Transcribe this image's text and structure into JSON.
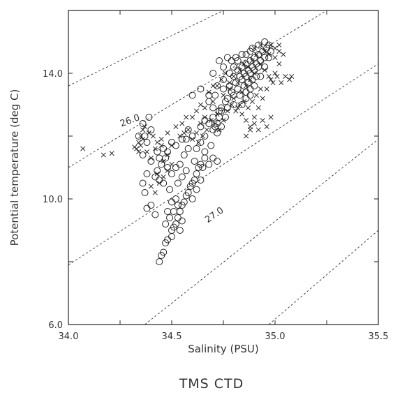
{
  "chart_data": {
    "type": "scatter",
    "title": "",
    "caption": "TMS CTD",
    "xlabel": "Salinity (PSU)",
    "ylabel": "Potential temperature (deg C)",
    "xlim": [
      34.0,
      35.5
    ],
    "ylim": [
      6.0,
      16.0
    ],
    "x_tick_labels": [
      "34.0",
      "34.5",
      "35.0",
      "35.5"
    ],
    "y_tick_labels": [
      "6.0",
      "10.0",
      "14.0"
    ],
    "x_minor_ticks": [
      34.25,
      34.75,
      35.25
    ],
    "y_minor_ticks": [
      8.0,
      12.0
    ],
    "grid": false,
    "legend": "none",
    "isopycnals": [
      {
        "x": [
          34.0,
          34.75
        ],
        "y": [
          13.6,
          16.0
        ]
      },
      {
        "x": [
          34.0,
          35.25
        ],
        "y": [
          11.0,
          16.0
        ]
      },
      {
        "x": [
          34.0,
          35.5
        ],
        "y": [
          7.9,
          14.3
        ]
      },
      {
        "x": [
          34.37,
          35.5
        ],
        "y": [
          6.0,
          11.9
        ]
      },
      {
        "x": [
          34.97,
          35.5
        ],
        "y": [
          6.0,
          9.0
        ]
      }
    ],
    "contour_labels": [
      {
        "text": "26.0",
        "x": 34.3,
        "y": 12.45,
        "angle": -20
      },
      {
        "text": "27.0",
        "x": 34.71,
        "y": 9.45,
        "angle": -35
      }
    ],
    "series": [
      {
        "marker": "circle",
        "points": [
          [
            34.44,
            8.0
          ],
          [
            34.45,
            8.2
          ],
          [
            34.46,
            8.3
          ],
          [
            34.47,
            8.6
          ],
          [
            34.48,
            8.7
          ],
          [
            34.5,
            8.8
          ],
          [
            34.5,
            9.0
          ],
          [
            34.51,
            9.1
          ],
          [
            34.52,
            9.2
          ],
          [
            34.53,
            9.4
          ],
          [
            34.54,
            9.6
          ],
          [
            34.55,
            9.8
          ],
          [
            34.56,
            9.9
          ],
          [
            34.57,
            10.1
          ],
          [
            34.58,
            10.2
          ],
          [
            34.59,
            10.4
          ],
          [
            34.6,
            10.5
          ],
          [
            34.61,
            10.6
          ],
          [
            34.62,
            10.8
          ],
          [
            34.63,
            11.0
          ],
          [
            34.64,
            11.1
          ],
          [
            34.66,
            11.3
          ],
          [
            34.48,
            9.6
          ],
          [
            34.5,
            9.9
          ],
          [
            34.52,
            10.0
          ],
          [
            34.49,
            10.3
          ],
          [
            34.46,
            10.5
          ],
          [
            34.44,
            10.6
          ],
          [
            34.43,
            10.9
          ],
          [
            34.45,
            11.1
          ],
          [
            34.47,
            11.3
          ],
          [
            34.43,
            11.5
          ],
          [
            34.46,
            11.6
          ],
          [
            34.4,
            11.2
          ],
          [
            34.38,
            10.8
          ],
          [
            34.36,
            10.5
          ],
          [
            34.37,
            10.2
          ],
          [
            34.4,
            9.8
          ],
          [
            34.42,
            9.5
          ],
          [
            34.38,
            9.7
          ],
          [
            34.53,
            10.5
          ],
          [
            34.55,
            10.7
          ],
          [
            34.57,
            10.9
          ],
          [
            34.54,
            11.1
          ],
          [
            34.56,
            11.4
          ],
          [
            34.58,
            11.6
          ],
          [
            34.61,
            11.2
          ],
          [
            34.65,
            11.0
          ],
          [
            34.68,
            11.1
          ],
          [
            34.7,
            11.3
          ],
          [
            34.72,
            11.2
          ],
          [
            34.6,
            12.0
          ],
          [
            34.58,
            12.2
          ],
          [
            34.57,
            11.9
          ],
          [
            34.5,
            11.8
          ],
          [
            34.48,
            11.5
          ],
          [
            34.52,
            11.7
          ],
          [
            34.55,
            11.9
          ],
          [
            34.36,
            11.4
          ],
          [
            34.38,
            11.8
          ],
          [
            34.4,
            12.2
          ],
          [
            34.37,
            12.0
          ],
          [
            34.62,
            11.6
          ],
          [
            34.64,
            11.8
          ],
          [
            34.66,
            11.5
          ],
          [
            34.69,
            11.7
          ],
          [
            34.55,
            9.3
          ],
          [
            34.54,
            9.0
          ],
          [
            34.47,
            9.2
          ],
          [
            34.49,
            9.4
          ],
          [
            34.51,
            9.6
          ],
          [
            34.53,
            9.8
          ],
          [
            34.6,
            10.0
          ],
          [
            34.62,
            10.3
          ],
          [
            34.64,
            10.6
          ],
          [
            34.5,
            10.8
          ],
          [
            34.52,
            11.0
          ],
          [
            34.48,
            11.0
          ],
          [
            34.44,
            11.3
          ],
          [
            34.42,
            10.7
          ],
          [
            34.7,
            12.2
          ],
          [
            34.72,
            12.4
          ],
          [
            34.74,
            12.8
          ],
          [
            34.76,
            13.1
          ],
          [
            34.75,
            13.5
          ],
          [
            34.78,
            13.6
          ],
          [
            34.8,
            13.9
          ],
          [
            34.82,
            14.1
          ],
          [
            34.84,
            14.2
          ],
          [
            34.86,
            14.3
          ],
          [
            34.88,
            14.4
          ],
          [
            34.9,
            14.5
          ],
          [
            34.92,
            14.6
          ],
          [
            34.94,
            14.7
          ],
          [
            34.96,
            14.8
          ],
          [
            34.97,
            14.9
          ],
          [
            34.83,
            13.9
          ],
          [
            34.85,
            14.0
          ],
          [
            34.87,
            14.1
          ],
          [
            34.89,
            14.2
          ],
          [
            34.91,
            14.3
          ],
          [
            34.93,
            14.4
          ],
          [
            34.95,
            14.5
          ],
          [
            34.81,
            13.7
          ],
          [
            34.84,
            13.8
          ],
          [
            34.86,
            13.9
          ],
          [
            34.88,
            14.0
          ],
          [
            34.9,
            14.1
          ],
          [
            34.92,
            14.2
          ],
          [
            34.79,
            13.4
          ],
          [
            34.82,
            13.5
          ],
          [
            34.85,
            13.6
          ],
          [
            34.87,
            13.7
          ],
          [
            34.89,
            13.8
          ],
          [
            34.91,
            13.9
          ],
          [
            34.77,
            13.2
          ],
          [
            34.8,
            13.3
          ],
          [
            34.83,
            13.3
          ],
          [
            34.86,
            13.4
          ],
          [
            34.88,
            13.5
          ],
          [
            34.74,
            12.9
          ],
          [
            34.77,
            12.9
          ],
          [
            34.8,
            13.0
          ],
          [
            34.73,
            12.6
          ],
          [
            34.76,
            12.6
          ],
          [
            34.71,
            12.3
          ],
          [
            34.72,
            12.1
          ],
          [
            34.74,
            12.3
          ],
          [
            34.6,
            13.3
          ],
          [
            34.64,
            13.5
          ],
          [
            34.68,
            13.3
          ],
          [
            34.72,
            13.6
          ],
          [
            34.75,
            13.8
          ],
          [
            34.78,
            14.0
          ],
          [
            34.8,
            14.2
          ],
          [
            34.82,
            14.4
          ],
          [
            34.84,
            14.6
          ],
          [
            34.75,
            14.2
          ],
          [
            34.77,
            14.5
          ],
          [
            34.73,
            14.4
          ],
          [
            34.7,
            14.0
          ],
          [
            34.79,
            14.4
          ],
          [
            34.81,
            14.5
          ],
          [
            34.86,
            14.6
          ],
          [
            34.88,
            14.7
          ],
          [
            34.89,
            14.8
          ],
          [
            34.92,
            14.9
          ],
          [
            34.95,
            15.0
          ],
          [
            34.34,
            12.0
          ],
          [
            34.36,
            12.4
          ],
          [
            34.39,
            12.6
          ],
          [
            34.68,
            12.4
          ],
          [
            34.7,
            12.6
          ],
          [
            34.73,
            12.8
          ],
          [
            34.86,
            13.2
          ],
          [
            34.84,
            13.0
          ],
          [
            34.88,
            13.3
          ],
          [
            34.9,
            13.6
          ],
          [
            34.93,
            13.9
          ],
          [
            34.95,
            14.2
          ],
          [
            34.97,
            14.5
          ],
          [
            34.98,
            14.7
          ],
          [
            34.66,
            12.0
          ],
          [
            34.64,
            12.3
          ],
          [
            34.66,
            12.5
          ],
          [
            34.7,
            12.9
          ],
          [
            34.68,
            13.1
          ],
          [
            34.71,
            13.3
          ]
        ]
      },
      {
        "marker": "x",
        "points": [
          [
            34.07,
            11.6
          ],
          [
            34.17,
            11.4
          ],
          [
            34.21,
            11.45
          ],
          [
            34.33,
            11.6
          ],
          [
            34.34,
            11.8
          ],
          [
            34.35,
            12.0
          ],
          [
            34.36,
            12.2
          ],
          [
            34.38,
            11.5
          ],
          [
            34.4,
            11.3
          ],
          [
            34.42,
            11.6
          ],
          [
            34.45,
            11.9
          ],
          [
            34.48,
            12.1
          ],
          [
            34.52,
            12.3
          ],
          [
            34.5,
            11.1
          ],
          [
            34.48,
            10.9
          ],
          [
            34.46,
            10.7
          ],
          [
            34.44,
            10.5
          ],
          [
            34.6,
            12.6
          ],
          [
            34.62,
            12.8
          ],
          [
            34.64,
            13.0
          ],
          [
            34.66,
            12.9
          ],
          [
            34.7,
            13.1
          ],
          [
            34.72,
            12.7
          ],
          [
            34.75,
            13.3
          ],
          [
            34.78,
            13.5
          ],
          [
            34.8,
            13.2
          ],
          [
            34.82,
            12.9
          ],
          [
            34.84,
            12.7
          ],
          [
            34.86,
            12.5
          ],
          [
            34.88,
            12.3
          ],
          [
            34.9,
            12.6
          ],
          [
            34.92,
            12.9
          ],
          [
            34.94,
            13.2
          ],
          [
            34.96,
            13.5
          ],
          [
            34.98,
            13.8
          ],
          [
            35.0,
            14.0
          ],
          [
            35.02,
            14.3
          ],
          [
            35.04,
            14.6
          ],
          [
            34.98,
            14.9
          ],
          [
            35.0,
            14.8
          ],
          [
            35.02,
            14.9
          ],
          [
            34.9,
            14.0
          ],
          [
            34.88,
            13.8
          ],
          [
            34.86,
            13.6
          ],
          [
            34.84,
            13.4
          ],
          [
            34.82,
            13.7
          ],
          [
            34.8,
            13.9
          ],
          [
            34.83,
            14.1
          ],
          [
            34.85,
            14.3
          ],
          [
            34.87,
            14.2
          ],
          [
            34.89,
            14.4
          ],
          [
            34.91,
            14.6
          ],
          [
            34.93,
            14.3
          ],
          [
            34.95,
            14.1
          ],
          [
            34.97,
            13.9
          ],
          [
            34.99,
            13.7
          ],
          [
            35.01,
            13.9
          ],
          [
            35.03,
            13.7
          ],
          [
            35.05,
            13.9
          ],
          [
            35.07,
            13.8
          ],
          [
            35.08,
            13.9
          ],
          [
            34.6,
            11.9
          ],
          [
            34.62,
            12.1
          ],
          [
            34.64,
            12.4
          ],
          [
            34.66,
            12.6
          ],
          [
            34.55,
            12.4
          ],
          [
            34.57,
            12.6
          ],
          [
            34.58,
            12.2
          ],
          [
            34.45,
            11.7
          ],
          [
            34.43,
            11.8
          ],
          [
            34.41,
            12.0
          ],
          [
            34.39,
            12.1
          ],
          [
            34.37,
            12.3
          ],
          [
            34.36,
            11.9
          ],
          [
            34.35,
            11.7
          ],
          [
            34.34,
            11.5
          ],
          [
            34.32,
            11.65
          ],
          [
            34.72,
            13.6
          ],
          [
            34.74,
            13.8
          ],
          [
            34.76,
            14.0
          ],
          [
            34.78,
            13.7
          ],
          [
            34.68,
            13.4
          ],
          [
            34.7,
            13.6
          ],
          [
            34.9,
            14.8
          ],
          [
            34.93,
            14.9
          ],
          [
            34.95,
            14.7
          ],
          [
            34.97,
            14.6
          ],
          [
            35.0,
            14.5
          ],
          [
            35.02,
            14.7
          ],
          [
            34.86,
            12.0
          ],
          [
            34.88,
            12.2
          ],
          [
            34.9,
            12.4
          ],
          [
            34.92,
            12.2
          ],
          [
            34.94,
            12.5
          ],
          [
            34.96,
            12.3
          ],
          [
            34.98,
            12.6
          ],
          [
            34.46,
            11.2
          ],
          [
            34.48,
            11.4
          ],
          [
            34.5,
            11.7
          ],
          [
            34.54,
            12.0
          ],
          [
            34.56,
            12.1
          ],
          [
            34.43,
            10.8
          ],
          [
            34.42,
            10.2
          ],
          [
            34.4,
            10.4
          ],
          [
            34.63,
            11.8
          ],
          [
            34.65,
            12.0
          ],
          [
            34.67,
            12.2
          ],
          [
            34.69,
            12.5
          ],
          [
            34.71,
            12.4
          ],
          [
            34.73,
            12.2
          ],
          [
            34.75,
            12.5
          ],
          [
            34.77,
            12.8
          ],
          [
            34.79,
            13.0
          ],
          [
            34.81,
            12.8
          ],
          [
            34.83,
            13.0
          ],
          [
            34.85,
            13.1
          ],
          [
            34.87,
            12.9
          ],
          [
            34.89,
            13.1
          ],
          [
            34.91,
            13.3
          ],
          [
            34.93,
            13.5
          ]
        ]
      }
    ]
  }
}
